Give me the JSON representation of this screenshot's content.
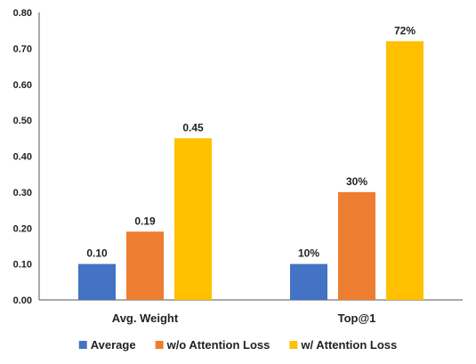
{
  "chart_data": {
    "type": "bar",
    "categories": [
      "Avg. Weight",
      "Top@1"
    ],
    "series": [
      {
        "name": "Average",
        "color": "#4472C4",
        "values": [
          0.1,
          0.1
        ],
        "labels": [
          "0.10",
          "10%"
        ]
      },
      {
        "name": "w/o Attention Loss",
        "color": "#ED7D31",
        "values": [
          0.19,
          0.3
        ],
        "labels": [
          "0.19",
          "30%"
        ]
      },
      {
        "name": "w/ Attention Loss",
        "color": "#FFC000",
        "values": [
          0.45,
          0.72
        ],
        "labels": [
          "0.45",
          "72%"
        ]
      }
    ],
    "ylim": [
      0.0,
      0.8
    ],
    "yticks": [
      0.0,
      0.1,
      0.2,
      0.3,
      0.4,
      0.5,
      0.6,
      0.7,
      0.8
    ],
    "ytick_labels": [
      "0.00",
      "0.10",
      "0.20",
      "0.30",
      "0.40",
      "0.50",
      "0.60",
      "0.70",
      "0.80"
    ],
    "grid": false,
    "legend_position": "bottom"
  }
}
